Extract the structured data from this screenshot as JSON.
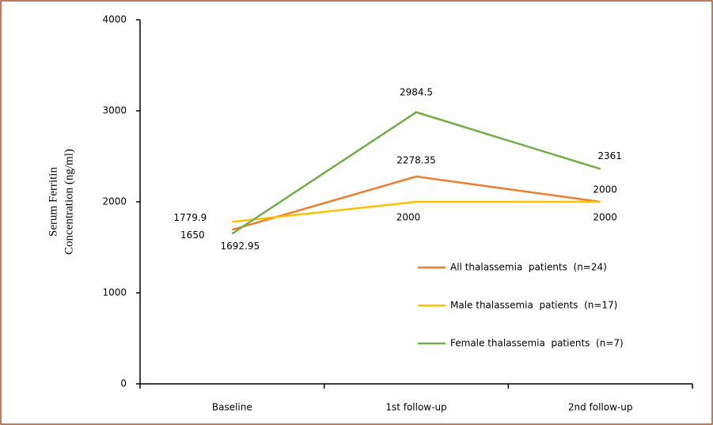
{
  "chart_data": {
    "type": "line",
    "ylabel": [
      "Serum Ferritin",
      "Concentration (ng/ml)"
    ],
    "categories": [
      "Baseline",
      "1st follow-up",
      "2nd follow-up"
    ],
    "series": [
      {
        "name": "All thalassemia  patients  (n=24)",
        "color": "#ed7d31",
        "values": [
          1692.95,
          2278.35,
          2000
        ]
      },
      {
        "name": "Male thalassemia  patients  (n=17)",
        "color": "#ffc000",
        "values": [
          1779.9,
          2000,
          2000
        ]
      },
      {
        "name": "Female thalassemia  patients  (n=7)",
        "color": "#70ad47",
        "values": [
          1650,
          2984.5,
          2361
        ]
      }
    ],
    "ylim": [
      0,
      4000
    ],
    "yticks": [
      0,
      1000,
      2000,
      3000,
      4000
    ],
    "legend": "lower right",
    "data_labels": true
  }
}
